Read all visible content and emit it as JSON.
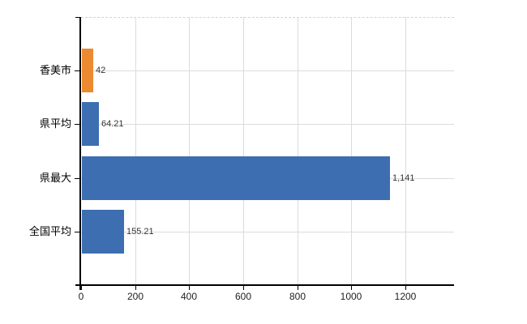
{
  "chart_data": {
    "type": "bar",
    "orientation": "horizontal",
    "title": "",
    "xlabel": "",
    "ylabel": "",
    "categories": [
      "香美市",
      "県平均",
      "県最大",
      "全国平均"
    ],
    "values": [
      42,
      64.21,
      1141,
      155.21
    ],
    "value_labels": [
      "42",
      "64.21",
      "1,141",
      "155.21"
    ],
    "bar_colors": [
      "#ec8a31",
      "#3d6eb1",
      "#3d6eb1",
      "#3d6eb1"
    ],
    "x_ticks": [
      0,
      200,
      400,
      600,
      800,
      1000,
      1200
    ],
    "x_tick_labels": [
      "0",
      "200",
      "400",
      "600",
      "800",
      "1000",
      "1200"
    ],
    "xlim": [
      0,
      1380
    ],
    "grid": true,
    "legend": false,
    "colors": {
      "highlight_bar": "#ec8a31",
      "default_bar": "#3d6eb1",
      "gridline": "#d9ddd9",
      "top_border_dashed": "#d9ced6",
      "axis": "#000000",
      "tick_label": "#222222",
      "value_label": "#333333"
    }
  }
}
